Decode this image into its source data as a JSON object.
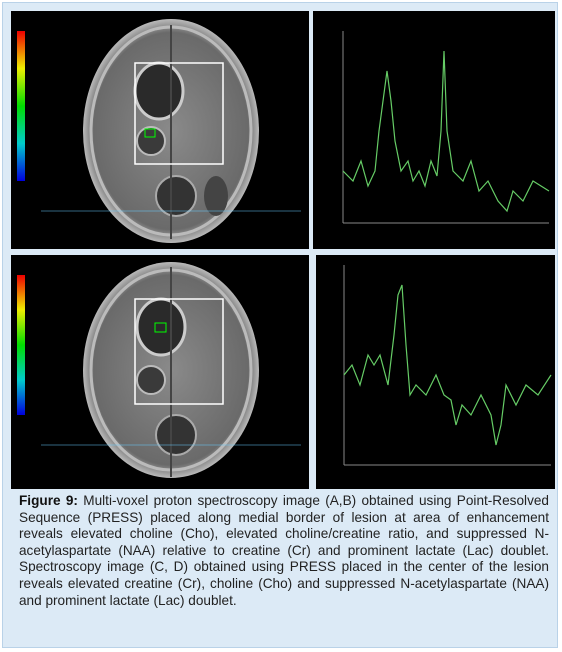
{
  "caption": {
    "label": "Figure 9:",
    "text": "Multi-voxel proton spectroscopy image (A,B) obtained using Point-Resolved Sequence (PRESS) placed along medial border of lesion at area of enhancement reveals elevated choline (Cho), elevated choline/creatine ratio, and suppressed N-acetylaspartate (NAA) relative to creatine (Cr) and prominent lactate (Lac) doublet. Spectroscopy image (C, D) obtained using PRESS placed in the center of the lesion reveals elevated creatine (Cr), choline (Cho) and suppressed N-acetylaspartate (NAA) and prominent lactate (Lac) doublet."
  }
}
